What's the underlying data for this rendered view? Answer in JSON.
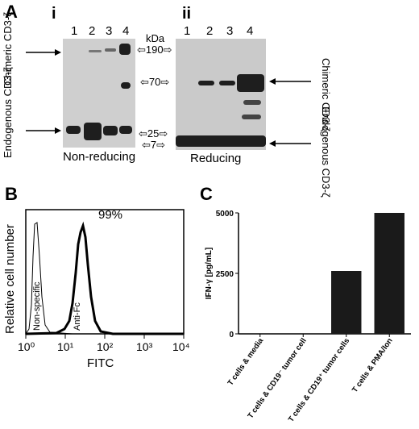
{
  "panel_a": {
    "letter": "A",
    "i_label": "i",
    "ii_label": "ii",
    "lanes_i": [
      "1",
      "2",
      "3",
      "4"
    ],
    "lanes_ii": [
      "1",
      "2",
      "3",
      "4"
    ],
    "kda_label": "kDa",
    "markers": [
      "190",
      "70",
      "25",
      "7"
    ],
    "chimeric_left": "Chimeric CD3-ζ",
    "endogenous_left": "Endogenous CD3-ζ",
    "chimeric_right": "Chimeric CD3-ζ",
    "endogenous_right": "Endogenous CD3-ζ",
    "caption_left": "Non-reducing",
    "caption_right": "Reducing"
  },
  "panel_b": {
    "letter": "B",
    "ylabel": "Relative cell number",
    "xlabel": "FITC",
    "percent": "99%",
    "label_nonspecific": "Non-specific",
    "label_antifc": "Anti-Fc",
    "x_ticks": [
      "10⁰",
      "10¹",
      "10²",
      "10³",
      "10⁴"
    ]
  },
  "chart_data": {
    "type": "bar",
    "title": "",
    "ylabel": "IFN-γ [pg/mL]",
    "xlabel": "",
    "ylim": [
      0,
      5000
    ],
    "yticks": [
      "0",
      "2500",
      "5000"
    ],
    "categories": [
      "T cells & media",
      "T cells & CD19⁻ tumor cell",
      "T cells & CD19⁺ tumor cells",
      "T cells & PMA/Ion"
    ],
    "values": [
      0,
      0,
      2600,
      5000
    ],
    "bar_color": "#1a1a1a",
    "panel_letter": "C"
  }
}
